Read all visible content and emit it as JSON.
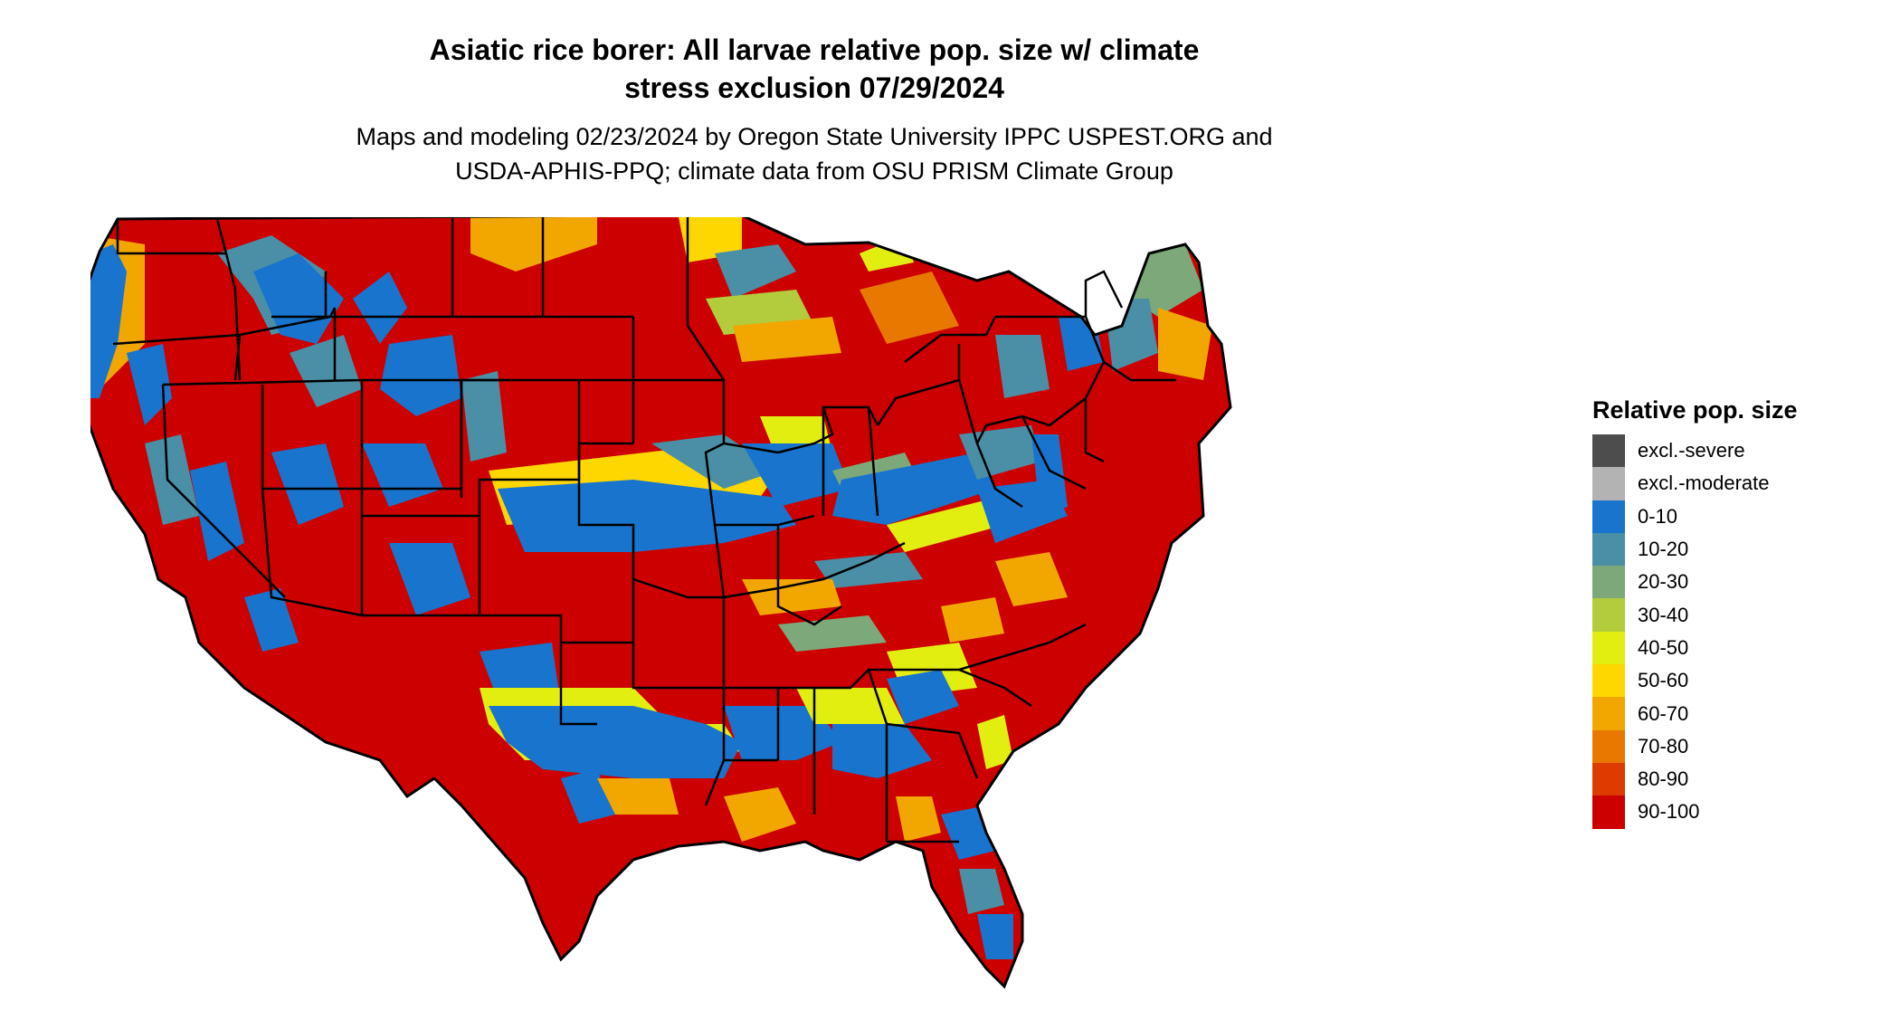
{
  "header": {
    "title_line1": "Asiatic rice borer: All larvae relative pop. size w/ climate",
    "title_line2": "stress exclusion 07/29/2024",
    "subtitle_line1": "Maps and modeling 02/23/2024 by Oregon State University IPPC USPEST.ORG and",
    "subtitle_line2": "USDA-APHIS-PPQ; climate data from OSU PRISM Climate Group"
  },
  "legend": {
    "title": "Relative pop. size",
    "items": [
      {
        "label": "excl.-severe",
        "color": "#4d4d4d"
      },
      {
        "label": "excl.-moderate",
        "color": "#b3b3b3"
      },
      {
        "label": "0-10",
        "color": "#1874cd"
      },
      {
        "label": "10-20",
        "color": "#4a8fa6"
      },
      {
        "label": "20-30",
        "color": "#7ca87a"
      },
      {
        "label": "30-40",
        "color": "#b2cc3c"
      },
      {
        "label": "40-50",
        "color": "#e2ee10"
      },
      {
        "label": "50-60",
        "color": "#ffd700"
      },
      {
        "label": "60-70",
        "color": "#f2a600"
      },
      {
        "label": "70-80",
        "color": "#e87800"
      },
      {
        "label": "80-90",
        "color": "#dd3b00"
      },
      {
        "label": "90-100",
        "color": "#cd0000"
      }
    ]
  },
  "map": {
    "region": "Contiguous United States",
    "background_class_color": "#cd0000"
  }
}
